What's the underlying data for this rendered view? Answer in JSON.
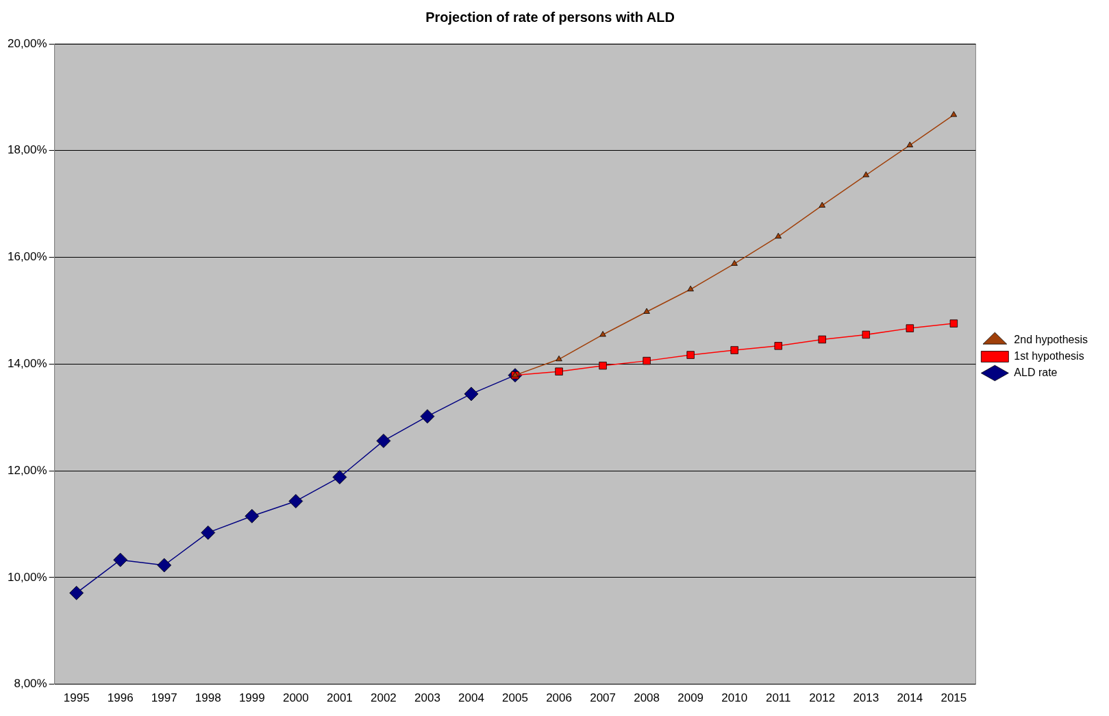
{
  "chart_data": {
    "type": "line",
    "title": "Projection of rate of persons with ALD",
    "categories": [
      "1995",
      "1996",
      "1997",
      "1998",
      "1999",
      "2000",
      "2001",
      "2002",
      "2003",
      "2004",
      "2005",
      "2006",
      "2007",
      "2008",
      "2009",
      "2010",
      "2011",
      "2012",
      "2013",
      "2014",
      "2015"
    ],
    "series": [
      {
        "name": "ALD rate",
        "color": "#000080",
        "marker": "diamond",
        "values": [
          9.71,
          10.33,
          10.23,
          10.84,
          11.15,
          11.43,
          11.88,
          12.56,
          13.02,
          13.44,
          13.79,
          null,
          null,
          null,
          null,
          null,
          null,
          null,
          null,
          null,
          null
        ]
      },
      {
        "name": "1st hypothesis",
        "color": "#ff0000",
        "marker": "square",
        "values": [
          null,
          null,
          null,
          null,
          null,
          null,
          null,
          null,
          null,
          null,
          13.79,
          13.86,
          13.97,
          14.06,
          14.17,
          14.26,
          14.34,
          14.46,
          14.55,
          14.67,
          14.76
        ]
      },
      {
        "name": "2nd hypothesis",
        "color": "#a0400a",
        "marker": "triangle",
        "values": [
          null,
          null,
          null,
          null,
          null,
          null,
          null,
          null,
          null,
          null,
          13.79,
          14.09,
          14.55,
          14.98,
          15.4,
          15.88,
          16.39,
          16.97,
          17.54,
          18.1,
          18.67
        ]
      }
    ],
    "ylim": [
      8,
      20
    ],
    "yticks": [
      {
        "value": 8,
        "label": "8,00%"
      },
      {
        "value": 10,
        "label": "10,00%"
      },
      {
        "value": 12,
        "label": "12,00%"
      },
      {
        "value": 14,
        "label": "14,00%"
      },
      {
        "value": 16,
        "label": "16,00%"
      },
      {
        "value": 18,
        "label": "18,00%"
      },
      {
        "value": 20,
        "label": "20,00%"
      }
    ],
    "grid": "y",
    "legend": "right",
    "line_style": "solid"
  }
}
